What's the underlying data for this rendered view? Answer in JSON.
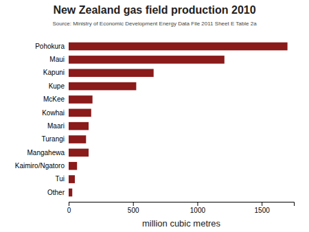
{
  "chart_data": {
    "type": "bar",
    "orientation": "horizontal",
    "title": "New Zealand gas field production 2010",
    "subtitle": "Source: Ministry of Economic Development Energy Data File 2011 Sheet E Table 2a",
    "xlabel": "million cubic metres",
    "categories": [
      "Pohokura",
      "Maui",
      "Kapuni",
      "Kupe",
      "McKee",
      "Kowhai",
      "Maari",
      "Turangi",
      "Mangahewa",
      "Kaimiro/Ngatoro",
      "Tui",
      "Other"
    ],
    "values": [
      1700,
      1210,
      660,
      525,
      185,
      175,
      155,
      135,
      155,
      65,
      48,
      28
    ],
    "color": "#8B1A1A",
    "xlim": [
      0,
      1750
    ],
    "xticks": [
      0,
      500,
      1000,
      1500
    ],
    "grid": false
  }
}
